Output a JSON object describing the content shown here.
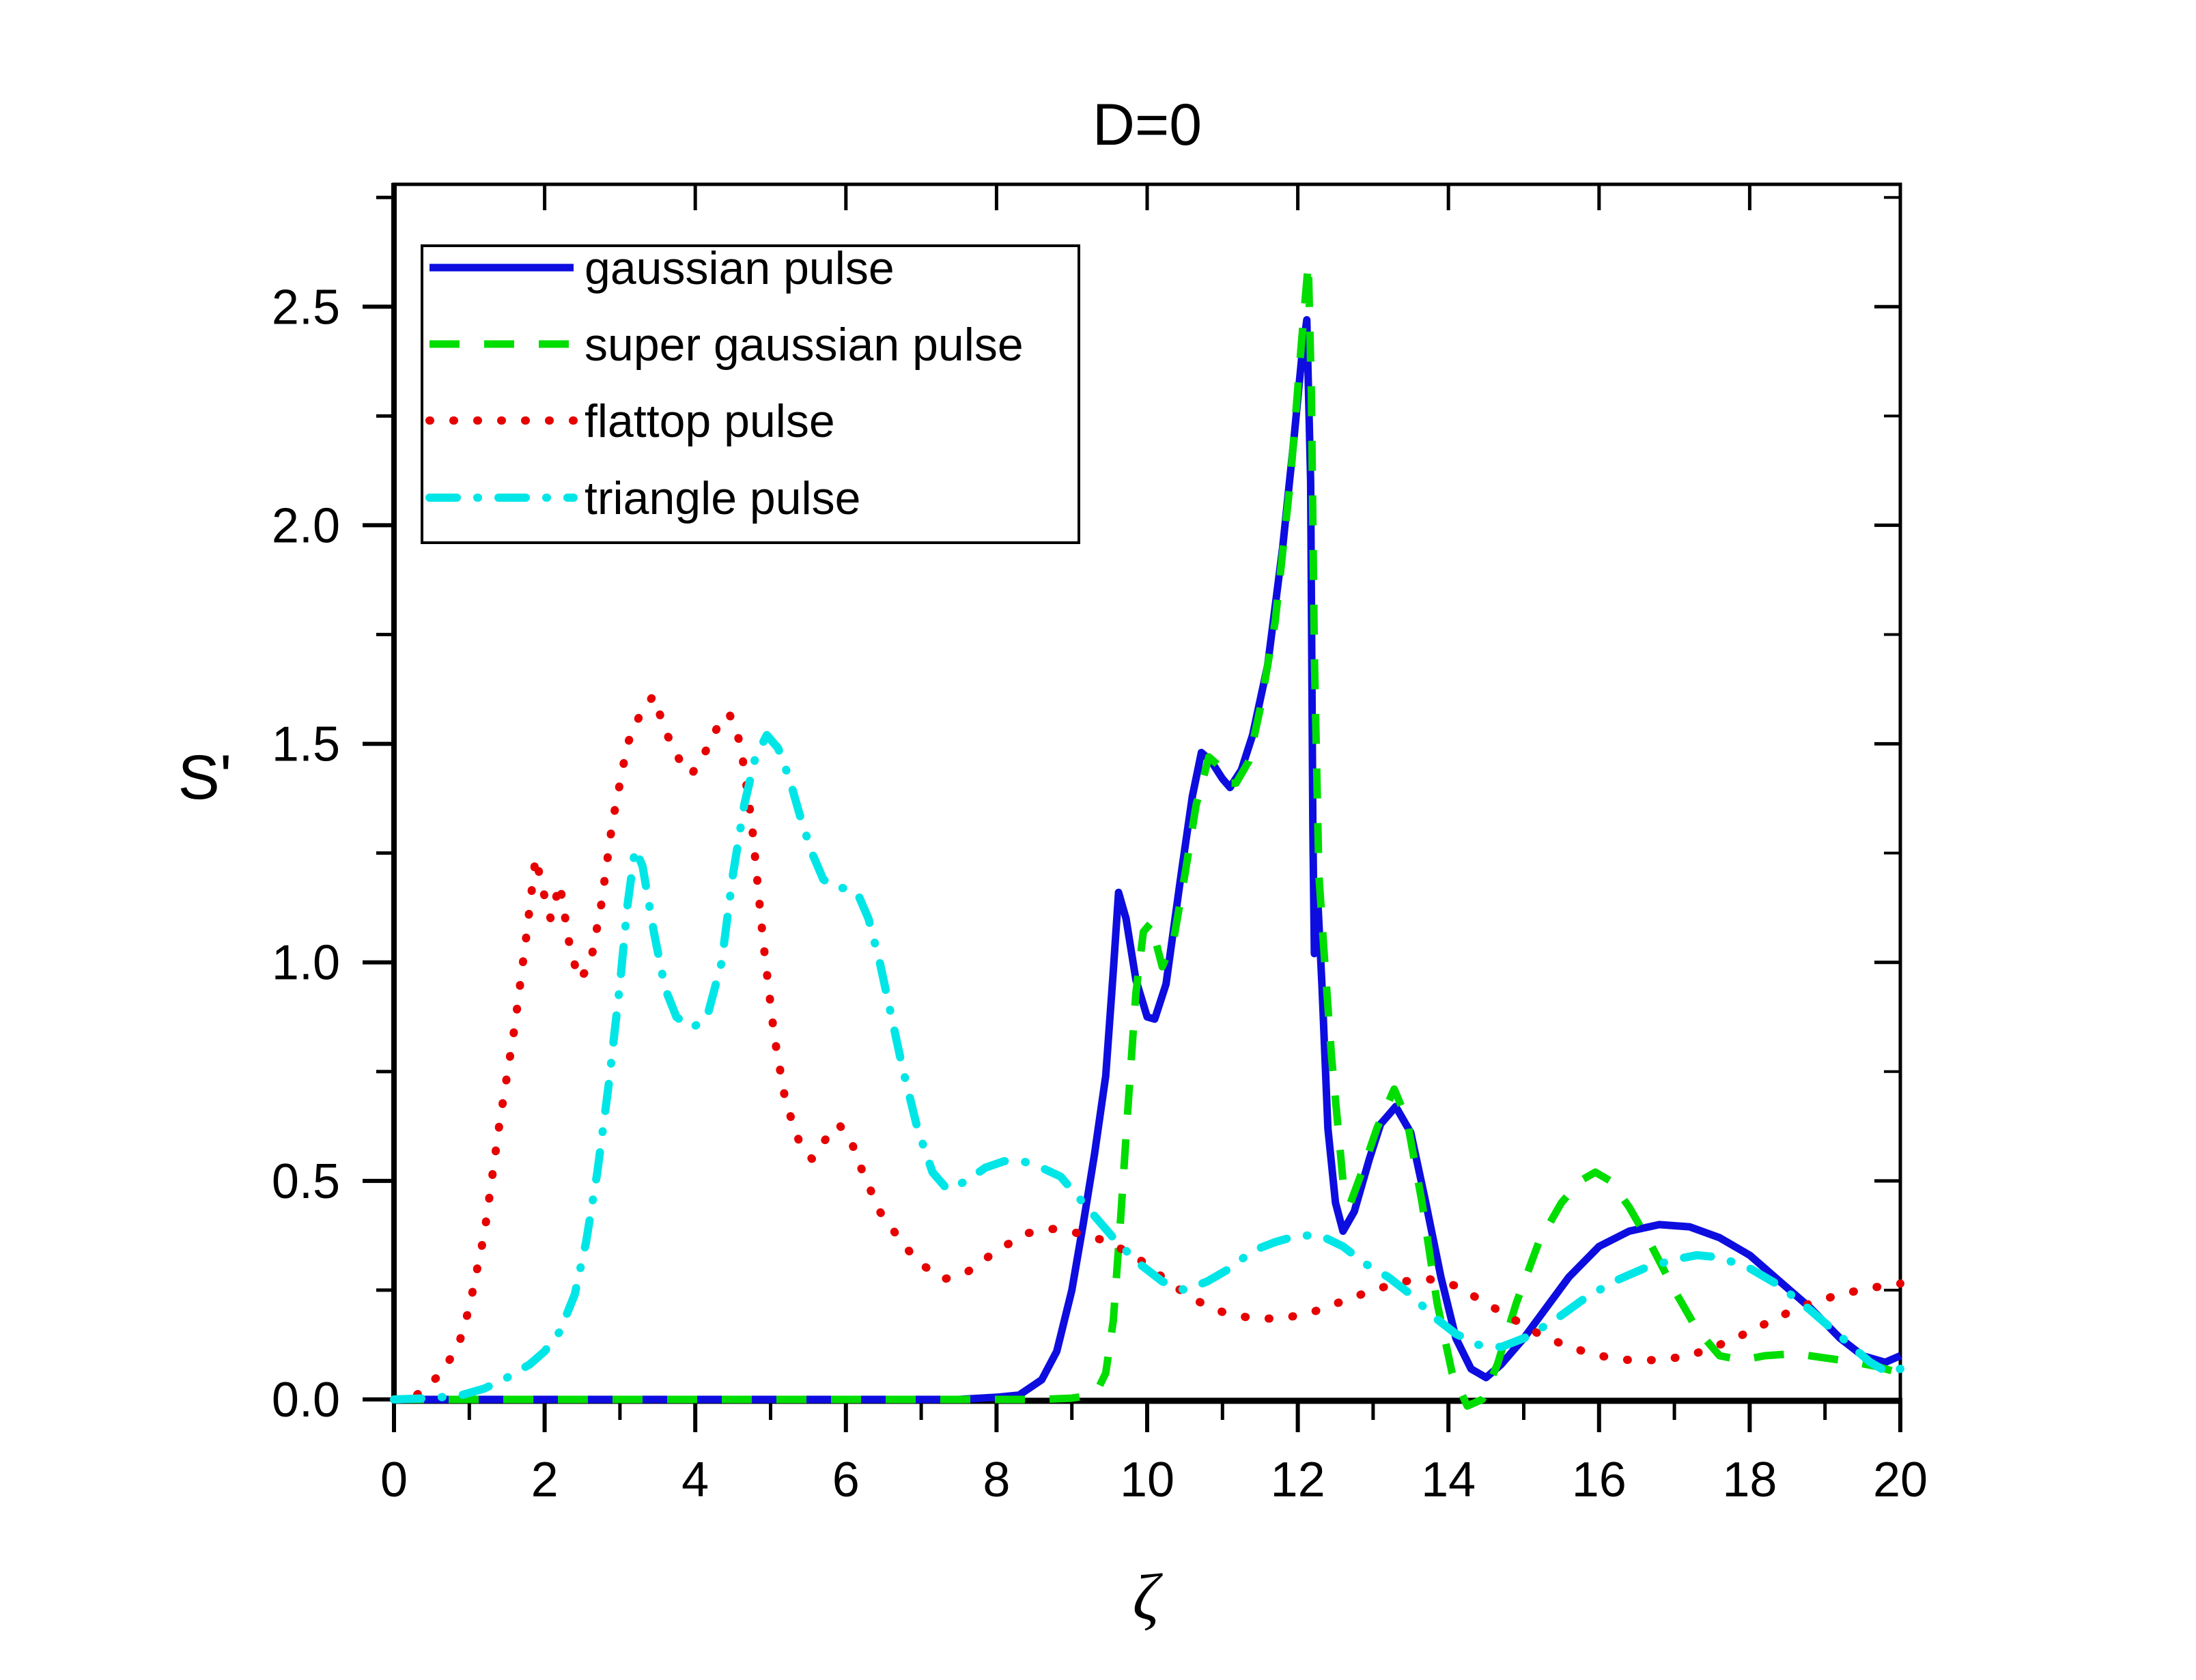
{
  "title": "D=0",
  "axes": {
    "x": {
      "label": "ζ",
      "min": 0,
      "max": 20,
      "major_ticks": [
        0,
        2,
        4,
        6,
        8,
        10,
        12,
        14,
        16,
        18,
        20
      ],
      "minor_ticks": [
        1,
        3,
        5,
        7,
        9,
        11,
        13,
        15,
        17,
        19
      ],
      "tick_labels": [
        "0",
        "2",
        "4",
        "6",
        "8",
        "10",
        "12",
        "14",
        "16",
        "18",
        "20"
      ]
    },
    "y": {
      "label": "S'",
      "min": 0,
      "max": 2.78,
      "major_ticks": [
        0,
        0.5,
        1.0,
        1.5,
        2.0,
        2.5
      ],
      "minor_ticks": [
        0.25,
        0.75,
        1.25,
        1.75,
        2.25,
        2.75
      ],
      "tick_labels": [
        "0.0",
        "0.5",
        "1.0",
        "1.5",
        "2.0",
        "2.5"
      ]
    }
  },
  "legend": {
    "items": [
      {
        "label": "gaussian pulse"
      },
      {
        "label": "super gaussian pulse"
      },
      {
        "label": "flattop pulse"
      },
      {
        "label": "triangle pulse"
      }
    ]
  },
  "chart_data": {
    "type": "line",
    "title": "D=0",
    "xlabel": "ζ",
    "ylabel": "S'",
    "xlim": [
      0,
      20
    ],
    "ylim": [
      0,
      2.78
    ],
    "grid": false,
    "legend_position": "upper-left",
    "series": [
      {
        "name": "gaussian pulse",
        "color": "#0d0de0",
        "style": "solid",
        "width": 11,
        "points": [
          [
            0,
            0
          ],
          [
            1,
            0
          ],
          [
            2,
            0
          ],
          [
            3,
            0
          ],
          [
            4,
            0
          ],
          [
            5,
            0
          ],
          [
            6,
            0
          ],
          [
            7,
            0
          ],
          [
            7.5,
            0
          ],
          [
            8,
            0.005
          ],
          [
            8.3,
            0.01
          ],
          [
            8.6,
            0.045
          ],
          [
            8.8,
            0.11
          ],
          [
            9.0,
            0.25
          ],
          [
            9.15,
            0.4
          ],
          [
            9.3,
            0.56
          ],
          [
            9.45,
            0.74
          ],
          [
            9.55,
            0.98
          ],
          [
            9.62,
            1.16
          ],
          [
            9.72,
            1.1
          ],
          [
            9.85,
            0.96
          ],
          [
            10.0,
            0.875
          ],
          [
            10.1,
            0.87
          ],
          [
            10.25,
            0.95
          ],
          [
            10.45,
            1.2
          ],
          [
            10.6,
            1.38
          ],
          [
            10.72,
            1.48
          ],
          [
            10.85,
            1.46
          ],
          [
            11.0,
            1.42
          ],
          [
            11.1,
            1.4
          ],
          [
            11.25,
            1.44
          ],
          [
            11.4,
            1.52
          ],
          [
            11.6,
            1.68
          ],
          [
            11.8,
            1.95
          ],
          [
            11.95,
            2.2
          ],
          [
            12.05,
            2.38
          ],
          [
            12.12,
            2.47
          ],
          [
            12.17,
            2.1
          ],
          [
            12.2,
            1.3
          ],
          [
            12.22,
            1.02
          ],
          [
            12.26,
            1.16
          ],
          [
            12.32,
            0.95
          ],
          [
            12.4,
            0.62
          ],
          [
            12.5,
            0.45
          ],
          [
            12.6,
            0.385
          ],
          [
            12.75,
            0.43
          ],
          [
            12.95,
            0.55
          ],
          [
            13.1,
            0.63
          ],
          [
            13.3,
            0.67
          ],
          [
            13.5,
            0.61
          ],
          [
            13.7,
            0.45
          ],
          [
            13.9,
            0.28
          ],
          [
            14.1,
            0.14
          ],
          [
            14.3,
            0.07
          ],
          [
            14.5,
            0.05
          ],
          [
            14.7,
            0.08
          ],
          [
            15.0,
            0.14
          ],
          [
            15.3,
            0.21
          ],
          [
            15.6,
            0.28
          ],
          [
            16.0,
            0.35
          ],
          [
            16.4,
            0.385
          ],
          [
            16.8,
            0.4
          ],
          [
            17.2,
            0.395
          ],
          [
            17.6,
            0.37
          ],
          [
            18.0,
            0.33
          ],
          [
            18.4,
            0.27
          ],
          [
            18.8,
            0.21
          ],
          [
            19.2,
            0.14
          ],
          [
            19.5,
            0.1
          ],
          [
            19.8,
            0.085
          ],
          [
            20,
            0.1
          ]
        ]
      },
      {
        "name": "super gaussian pulse",
        "color": "#00dd00",
        "style": "dashed",
        "width": 11,
        "points": [
          [
            0,
            0
          ],
          [
            1,
            0
          ],
          [
            2,
            0
          ],
          [
            3,
            0
          ],
          [
            4,
            0
          ],
          [
            5,
            0
          ],
          [
            6,
            0
          ],
          [
            7,
            0
          ],
          [
            8,
            0
          ],
          [
            8.6,
            0
          ],
          [
            9.0,
            0.003
          ],
          [
            9.2,
            0.008
          ],
          [
            9.35,
            0.025
          ],
          [
            9.45,
            0.06
          ],
          [
            9.55,
            0.18
          ],
          [
            9.65,
            0.42
          ],
          [
            9.75,
            0.68
          ],
          [
            9.85,
            0.93
          ],
          [
            9.95,
            1.07
          ],
          [
            10.05,
            1.09
          ],
          [
            10.2,
            0.99
          ],
          [
            10.35,
            1.05
          ],
          [
            10.5,
            1.2
          ],
          [
            10.65,
            1.36
          ],
          [
            10.82,
            1.47
          ],
          [
            10.95,
            1.45
          ],
          [
            11.1,
            1.41
          ],
          [
            11.18,
            1.41
          ],
          [
            11.35,
            1.46
          ],
          [
            11.5,
            1.58
          ],
          [
            11.7,
            1.78
          ],
          [
            11.9,
            2.1
          ],
          [
            12.05,
            2.42
          ],
          [
            12.14,
            2.6
          ],
          [
            12.18,
            2.3
          ],
          [
            12.22,
            1.7
          ],
          [
            12.28,
            1.2
          ],
          [
            12.35,
            1.02
          ],
          [
            12.45,
            0.78
          ],
          [
            12.6,
            0.5
          ],
          [
            12.7,
            0.45
          ],
          [
            12.85,
            0.52
          ],
          [
            13.05,
            0.62
          ],
          [
            13.28,
            0.71
          ],
          [
            13.45,
            0.64
          ],
          [
            13.65,
            0.45
          ],
          [
            13.85,
            0.22
          ],
          [
            14.05,
            0.06
          ],
          [
            14.25,
            -0.015
          ],
          [
            14.45,
            0.0
          ],
          [
            14.65,
            0.08
          ],
          [
            14.9,
            0.22
          ],
          [
            15.2,
            0.36
          ],
          [
            15.5,
            0.45
          ],
          [
            15.75,
            0.5
          ],
          [
            15.95,
            0.52
          ],
          [
            16.15,
            0.5
          ],
          [
            16.4,
            0.44
          ],
          [
            16.7,
            0.35
          ],
          [
            17.0,
            0.25
          ],
          [
            17.3,
            0.16
          ],
          [
            17.6,
            0.1
          ],
          [
            17.9,
            0.09
          ],
          [
            18.2,
            0.1
          ],
          [
            18.6,
            0.105
          ],
          [
            19.0,
            0.095
          ],
          [
            19.4,
            0.085
          ],
          [
            19.7,
            0.075
          ],
          [
            20,
            0.06
          ]
        ]
      },
      {
        "name": "flattop pulse",
        "color": "#e60000",
        "style": "dotted",
        "width": 12,
        "points": [
          [
            0,
            0
          ],
          [
            0.3,
            0.01
          ],
          [
            0.6,
            0.055
          ],
          [
            0.85,
            0.12
          ],
          [
            1.0,
            0.21
          ],
          [
            1.2,
            0.38
          ],
          [
            1.4,
            0.63
          ],
          [
            1.6,
            0.85
          ],
          [
            1.75,
            1.05
          ],
          [
            1.88,
            1.24
          ],
          [
            2.0,
            1.15
          ],
          [
            2.08,
            1.1
          ],
          [
            2.2,
            1.18
          ],
          [
            2.32,
            1.05
          ],
          [
            2.45,
            0.96
          ],
          [
            2.6,
            0.99
          ],
          [
            2.75,
            1.13
          ],
          [
            2.9,
            1.32
          ],
          [
            3.1,
            1.5
          ],
          [
            3.3,
            1.58
          ],
          [
            3.45,
            1.61
          ],
          [
            3.6,
            1.53
          ],
          [
            3.8,
            1.46
          ],
          [
            3.95,
            1.43
          ],
          [
            4.1,
            1.47
          ],
          [
            4.3,
            1.54
          ],
          [
            4.45,
            1.57
          ],
          [
            4.6,
            1.5
          ],
          [
            4.75,
            1.32
          ],
          [
            4.9,
            1.05
          ],
          [
            5.05,
            0.83
          ],
          [
            5.2,
            0.68
          ],
          [
            5.4,
            0.58
          ],
          [
            5.55,
            0.55
          ],
          [
            5.75,
            0.6
          ],
          [
            5.9,
            0.63
          ],
          [
            6.05,
            0.6
          ],
          [
            6.2,
            0.53
          ],
          [
            6.45,
            0.43
          ],
          [
            6.7,
            0.37
          ],
          [
            6.95,
            0.315
          ],
          [
            7.3,
            0.275
          ],
          [
            7.6,
            0.29
          ],
          [
            8.0,
            0.34
          ],
          [
            8.4,
            0.38
          ],
          [
            8.75,
            0.39
          ],
          [
            9.1,
            0.38
          ],
          [
            9.5,
            0.36
          ],
          [
            9.9,
            0.32
          ],
          [
            10.2,
            0.28
          ],
          [
            10.6,
            0.23
          ],
          [
            11.0,
            0.2
          ],
          [
            11.4,
            0.185
          ],
          [
            11.8,
            0.185
          ],
          [
            12.2,
            0.2
          ],
          [
            12.6,
            0.225
          ],
          [
            13.0,
            0.25
          ],
          [
            13.4,
            0.27
          ],
          [
            13.75,
            0.275
          ],
          [
            14.1,
            0.26
          ],
          [
            14.45,
            0.225
          ],
          [
            14.8,
            0.19
          ],
          [
            15.2,
            0.15
          ],
          [
            15.6,
            0.12
          ],
          [
            16.0,
            0.1
          ],
          [
            16.4,
            0.09
          ],
          [
            16.8,
            0.09
          ],
          [
            17.2,
            0.1
          ],
          [
            17.6,
            0.125
          ],
          [
            18.0,
            0.155
          ],
          [
            18.4,
            0.19
          ],
          [
            18.8,
            0.22
          ],
          [
            19.2,
            0.24
          ],
          [
            19.6,
            0.255
          ],
          [
            20,
            0.265
          ]
        ]
      },
      {
        "name": "triangle pulse",
        "color": "#00e6e6",
        "style": "dashdot",
        "width": 12,
        "points": [
          [
            0,
            0
          ],
          [
            0.5,
            0.003
          ],
          [
            0.9,
            0.01
          ],
          [
            1.2,
            0.025
          ],
          [
            1.5,
            0.05
          ],
          [
            1.8,
            0.08
          ],
          [
            2.0,
            0.11
          ],
          [
            2.2,
            0.155
          ],
          [
            2.4,
            0.24
          ],
          [
            2.55,
            0.36
          ],
          [
            2.7,
            0.52
          ],
          [
            2.85,
            0.72
          ],
          [
            3.0,
            0.95
          ],
          [
            3.1,
            1.13
          ],
          [
            3.2,
            1.26
          ],
          [
            3.3,
            1.22
          ],
          [
            3.45,
            1.07
          ],
          [
            3.6,
            0.94
          ],
          [
            3.75,
            0.875
          ],
          [
            3.95,
            0.85
          ],
          [
            4.15,
            0.87
          ],
          [
            4.35,
            1.0
          ],
          [
            4.5,
            1.2
          ],
          [
            4.65,
            1.36
          ],
          [
            4.8,
            1.47
          ],
          [
            4.95,
            1.52
          ],
          [
            5.1,
            1.49
          ],
          [
            5.25,
            1.42
          ],
          [
            5.4,
            1.33
          ],
          [
            5.55,
            1.25
          ],
          [
            5.7,
            1.19
          ],
          [
            5.85,
            1.17
          ],
          [
            6.0,
            1.17
          ],
          [
            6.15,
            1.16
          ],
          [
            6.3,
            1.1
          ],
          [
            6.45,
            1.0
          ],
          [
            6.6,
            0.88
          ],
          [
            6.75,
            0.76
          ],
          [
            6.95,
            0.62
          ],
          [
            7.15,
            0.52
          ],
          [
            7.35,
            0.48
          ],
          [
            7.6,
            0.5
          ],
          [
            7.85,
            0.53
          ],
          [
            8.1,
            0.545
          ],
          [
            8.35,
            0.545
          ],
          [
            8.6,
            0.53
          ],
          [
            8.85,
            0.51
          ],
          [
            9.1,
            0.46
          ],
          [
            9.35,
            0.41
          ],
          [
            9.6,
            0.36
          ],
          [
            9.9,
            0.31
          ],
          [
            10.2,
            0.27
          ],
          [
            10.5,
            0.25
          ],
          [
            10.8,
            0.27
          ],
          [
            11.1,
            0.3
          ],
          [
            11.4,
            0.34
          ],
          [
            11.7,
            0.36
          ],
          [
            12.0,
            0.375
          ],
          [
            12.3,
            0.375
          ],
          [
            12.6,
            0.35
          ],
          [
            12.9,
            0.31
          ],
          [
            13.2,
            0.28
          ],
          [
            13.5,
            0.24
          ],
          [
            13.8,
            0.19
          ],
          [
            14.1,
            0.15
          ],
          [
            14.4,
            0.125
          ],
          [
            14.7,
            0.12
          ],
          [
            15.0,
            0.14
          ],
          [
            15.4,
            0.18
          ],
          [
            15.8,
            0.23
          ],
          [
            16.2,
            0.27
          ],
          [
            16.6,
            0.3
          ],
          [
            17.0,
            0.32
          ],
          [
            17.3,
            0.33
          ],
          [
            17.6,
            0.325
          ],
          [
            18.0,
            0.3
          ],
          [
            18.4,
            0.26
          ],
          [
            18.8,
            0.205
          ],
          [
            19.2,
            0.145
          ],
          [
            19.6,
            0.085
          ],
          [
            19.85,
            0.06
          ],
          [
            20,
            0.07
          ]
        ]
      }
    ]
  }
}
